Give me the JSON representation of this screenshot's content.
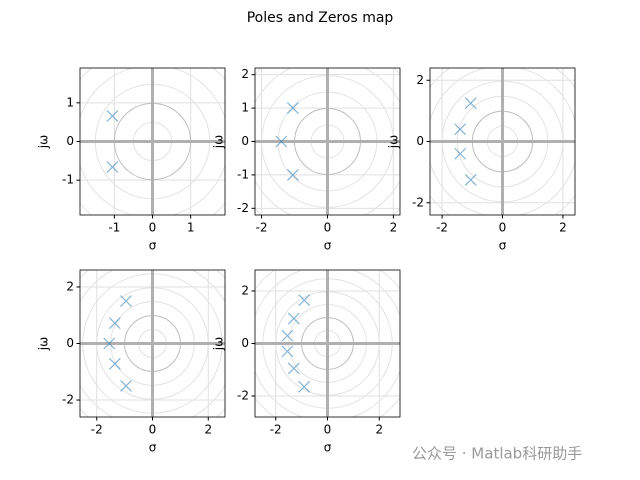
{
  "title": "Poles and Zeros map",
  "watermark": "公众号 · Matlab科研助手",
  "chart_data": [
    {
      "type": "scatter",
      "xlabel": "σ",
      "ylabel": "jω",
      "color": "#1f77b4",
      "marker": "x",
      "grid": true,
      "x": [
        -1.05,
        -1.05
      ],
      "y": [
        0.66,
        -0.66
      ],
      "xlim": [
        -1.9,
        1.9
      ],
      "ylim": [
        -1.9,
        1.9
      ],
      "xticks": [
        -1,
        0,
        1
      ],
      "yticks": [
        -1,
        0,
        1
      ]
    },
    {
      "type": "scatter",
      "xlabel": "σ",
      "ylabel": "jω",
      "color": "#1f77b4",
      "marker": "x",
      "grid": true,
      "x": [
        -1.4,
        -1.05,
        -1.05
      ],
      "y": [
        0,
        1.0,
        -1.0
      ],
      "xlim": [
        -2.2,
        2.2
      ],
      "ylim": [
        -2.2,
        2.2
      ],
      "xticks": [
        -2,
        0,
        2
      ],
      "yticks": [
        -2,
        -1,
        0,
        1,
        2
      ]
    },
    {
      "type": "scatter",
      "xlabel": "σ",
      "ylabel": "jω",
      "color": "#1f77b4",
      "marker": "x",
      "grid": true,
      "x": [
        -1.05,
        -1.4,
        -1.4,
        -1.05
      ],
      "y": [
        1.25,
        0.4,
        -0.4,
        -1.25
      ],
      "xlim": [
        -2.4,
        2.4
      ],
      "ylim": [
        -2.4,
        2.4
      ],
      "xticks": [
        -2,
        0,
        2
      ],
      "yticks": [
        -2,
        0,
        2
      ]
    },
    {
      "type": "scatter",
      "xlabel": "σ",
      "ylabel": "jω",
      "color": "#1f77b4",
      "marker": "x",
      "grid": true,
      "x": [
        -0.95,
        -1.35,
        -1.55,
        -1.35,
        -0.95
      ],
      "y": [
        1.5,
        0.72,
        0,
        -0.72,
        -1.5
      ],
      "xlim": [
        -2.6,
        2.6
      ],
      "ylim": [
        -2.6,
        2.6
      ],
      "xticks": [
        -2,
        0,
        2
      ],
      "yticks": [
        -2,
        0,
        2
      ]
    },
    {
      "type": "scatter",
      "xlabel": "σ",
      "ylabel": "jω",
      "color": "#1f77b4",
      "marker": "x",
      "grid": true,
      "x": [
        -0.9,
        -1.3,
        -1.55,
        -1.55,
        -1.3,
        -0.9
      ],
      "y": [
        1.65,
        0.95,
        0.3,
        -0.3,
        -0.95,
        -1.65
      ],
      "xlim": [
        -2.8,
        2.8
      ],
      "ylim": [
        -2.8,
        2.8
      ],
      "xticks": [
        -2,
        0,
        2
      ],
      "yticks": [
        -2,
        0,
        2
      ]
    }
  ]
}
